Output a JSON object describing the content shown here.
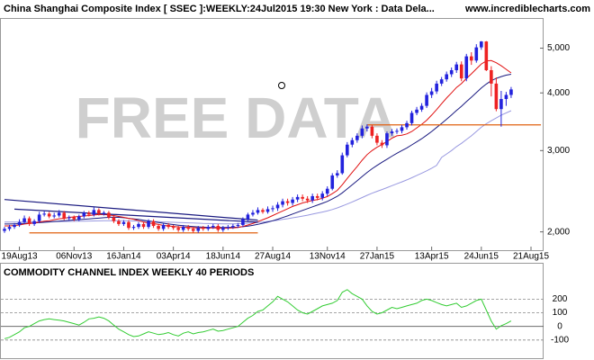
{
  "chart_data": [
    {
      "type": "candlestick",
      "title": "China Shanghai Composite Index [ SSEC ]:WEEKLY:24Jul2015 19:30 New York : Data Dela...",
      "source": "www.incrediblecharts.com",
      "watermark": "FREE DATA",
      "categories": [
        null,
        null,
        null,
        "19Aug13",
        null,
        null,
        null,
        null,
        null,
        null,
        null,
        null,
        null,
        null,
        "06Nov13",
        null,
        null,
        null,
        null,
        null,
        null,
        null,
        null,
        null,
        "16Jan14",
        null,
        null,
        null,
        null,
        null,
        null,
        null,
        null,
        null,
        "03Apr14",
        null,
        null,
        null,
        null,
        null,
        null,
        null,
        null,
        null,
        "18Jun14",
        null,
        null,
        null,
        null,
        null,
        null,
        null,
        null,
        null,
        "27Aug14",
        null,
        null,
        null,
        null,
        null,
        null,
        null,
        null,
        null,
        null,
        "13Nov14",
        null,
        null,
        null,
        null,
        null,
        null,
        null,
        null,
        null,
        "27Jan15",
        null,
        null,
        null,
        null,
        null,
        null,
        null,
        null,
        null,
        null,
        "13Apr15",
        null,
        null,
        null,
        null,
        null,
        null,
        null,
        null,
        null,
        "24Jun15",
        null,
        null,
        null,
        null,
        null,
        null,
        null,
        null,
        null,
        "21Aug15"
      ],
      "open": [
        2010,
        2030,
        2050,
        2070,
        2100,
        2140,
        2080,
        2110,
        2180,
        2190,
        2160,
        2170,
        2200,
        2140,
        2150,
        2130,
        2160,
        2200,
        2180,
        2230,
        2190,
        2200,
        2150,
        2110,
        2080,
        2100,
        2040,
        2050,
        2080,
        2050,
        2110,
        2060,
        2030,
        2070,
        2050,
        2040,
        2020,
        2050,
        2030,
        2010,
        2040,
        2030,
        2050,
        2060,
        2020,
        2040,
        2050,
        2060,
        2070,
        2130,
        2180,
        2200,
        2230,
        2210,
        2240,
        2250,
        2290,
        2330,
        2310,
        2350,
        2380,
        2360,
        2340,
        2390,
        2370,
        2420,
        2480,
        2650,
        2680,
        2930,
        3090,
        3160,
        3230,
        3350,
        3380,
        3230,
        3120,
        3080,
        3270,
        3300,
        3310,
        3370,
        3440,
        3620,
        3680,
        3750,
        3960,
        4030,
        4190,
        4280,
        4390,
        4480,
        4610,
        4300,
        4800,
        4700,
        5020,
        5170,
        4480,
        4190,
        3690,
        3880,
        3960,
        null,
        null,
        null,
        null
      ],
      "high": [
        2050,
        2070,
        2090,
        2130,
        2170,
        2160,
        2130,
        2210,
        2220,
        2210,
        2200,
        2230,
        2220,
        2170,
        2170,
        2180,
        2220,
        2220,
        2260,
        2250,
        2220,
        2220,
        2170,
        2130,
        2120,
        2120,
        2070,
        2100,
        2100,
        2130,
        2130,
        2080,
        2090,
        2090,
        2070,
        2060,
        2070,
        2070,
        2050,
        2060,
        2060,
        2070,
        2080,
        2080,
        2060,
        2070,
        2080,
        2090,
        2150,
        2200,
        2230,
        2260,
        2250,
        2270,
        2280,
        2320,
        2360,
        2360,
        2380,
        2410,
        2410,
        2390,
        2420,
        2420,
        2450,
        2510,
        2680,
        2720,
        2970,
        3130,
        3200,
        3270,
        3400,
        3420,
        3410,
        3270,
        3160,
        3300,
        3340,
        3350,
        3410,
        3480,
        3660,
        3730,
        3800,
        4010,
        4100,
        4250,
        4330,
        4450,
        4540,
        4670,
        4680,
        4860,
        4900,
        5100,
        5180,
        5180,
        4570,
        4320,
        4040,
        4020,
        4120,
        null,
        null,
        null,
        null
      ],
      "low": [
        1990,
        2010,
        2030,
        2050,
        2080,
        2060,
        2060,
        2090,
        2160,
        2140,
        2140,
        2150,
        2120,
        2120,
        2110,
        2110,
        2140,
        2160,
        2160,
        2170,
        2170,
        2130,
        2090,
        2060,
        2060,
        2020,
        2020,
        2030,
        2030,
        2030,
        2040,
        2010,
        2010,
        2030,
        2020,
        2000,
        2000,
        2010,
        1990,
        1990,
        2010,
        2010,
        2030,
        2000,
        2000,
        2020,
        2030,
        2040,
        2050,
        2110,
        2160,
        2180,
        2190,
        2190,
        2210,
        2220,
        2260,
        2280,
        2280,
        2320,
        2330,
        2310,
        2310,
        2340,
        2340,
        2390,
        2460,
        2620,
        2660,
        2900,
        3050,
        3120,
        3190,
        3300,
        3190,
        3080,
        3040,
        3040,
        3230,
        3260,
        3270,
        3330,
        3400,
        3580,
        3640,
        3710,
        3900,
        3980,
        4140,
        4230,
        4330,
        4420,
        4240,
        4240,
        4600,
        4650,
        4960,
        4460,
        3930,
        3650,
        3380,
        3750,
        3900,
        null,
        null,
        null,
        null
      ],
      "close": [
        2030,
        2050,
        2070,
        2100,
        2140,
        2080,
        2110,
        2180,
        2190,
        2160,
        2170,
        2200,
        2140,
        2150,
        2130,
        2160,
        2200,
        2180,
        2230,
        2190,
        2200,
        2150,
        2110,
        2080,
        2100,
        2040,
        2050,
        2080,
        2050,
        2110,
        2060,
        2030,
        2070,
        2050,
        2040,
        2020,
        2050,
        2030,
        2010,
        2040,
        2030,
        2050,
        2060,
        2020,
        2040,
        2050,
        2060,
        2070,
        2130,
        2180,
        2200,
        2230,
        2210,
        2240,
        2250,
        2290,
        2330,
        2310,
        2350,
        2380,
        2360,
        2340,
        2390,
        2370,
        2420,
        2480,
        2650,
        2680,
        2930,
        3090,
        3160,
        3230,
        3350,
        3380,
        3230,
        3120,
        3080,
        3270,
        3300,
        3310,
        3370,
        3440,
        3620,
        3680,
        3750,
        3960,
        4030,
        4190,
        4280,
        4390,
        4480,
        4610,
        4300,
        4800,
        4700,
        5020,
        5170,
        4480,
        4190,
        3690,
        3880,
        3960,
        4070,
        null,
        null,
        null,
        null
      ],
      "up_color": "#2222dd",
      "down_color": "#ee2222",
      "lines": [
        {
          "color": "#9999e0",
          "values": [
            2100,
            2100,
            2100,
            2100,
            2101,
            2101,
            2102,
            2102,
            2103,
            2103,
            2104,
            2105,
            2106,
            2107,
            2108,
            2109,
            2110,
            2111,
            2112,
            2113,
            2114,
            2115,
            2115,
            2115,
            2114,
            2113,
            2112,
            2111,
            2110,
            2108,
            2106,
            2104,
            2102,
            2100,
            2098,
            2096,
            2094,
            2092,
            2090,
            2088,
            2086,
            2085,
            2084,
            2083,
            2082,
            2082,
            2082,
            2083,
            2085,
            2088,
            2092,
            2096,
            2101,
            2107,
            2113,
            2120,
            2128,
            2136,
            2145,
            2154,
            2164,
            2174,
            2185,
            2196,
            2208,
            2220,
            2236,
            2254,
            2275,
            2298,
            2322,
            2347,
            2373,
            2400,
            2425,
            2448,
            2470,
            2494,
            2518,
            2542,
            2566,
            2592,
            2620,
            2650,
            2680,
            2712,
            2748,
            2786,
            2900,
            2950,
            3000,
            3060,
            3110,
            3170,
            3230,
            3300,
            3370,
            3430,
            3480,
            3530,
            3580,
            3620,
            3660,
            null,
            null,
            null,
            null
          ]
        },
        {
          "color": "#1a1a80",
          "values": [
            2080,
            2080,
            2082,
            2084,
            2086,
            2088,
            2090,
            2094,
            2098,
            2102,
            2106,
            2110,
            2114,
            2118,
            2122,
            2126,
            2130,
            2134,
            2138,
            2142,
            2146,
            2150,
            2152,
            2150,
            2146,
            2140,
            2134,
            2128,
            2120,
            2112,
            2104,
            2096,
            2088,
            2080,
            2074,
            2068,
            2062,
            2058,
            2054,
            2050,
            2048,
            2046,
            2045,
            2044,
            2044,
            2045,
            2046,
            2048,
            2052,
            2058,
            2066,
            2076,
            2088,
            2100,
            2114,
            2130,
            2148,
            2166,
            2186,
            2206,
            2226,
            2246,
            2266,
            2286,
            2306,
            2328,
            2356,
            2388,
            2430,
            2478,
            2528,
            2580,
            2636,
            2690,
            2740,
            2786,
            2830,
            2874,
            2918,
            2960,
            3000,
            3040,
            3086,
            3134,
            3184,
            3240,
            3300,
            3366,
            3436,
            3508,
            3584,
            3664,
            3742,
            3830,
            3916,
            4006,
            4100,
            4180,
            4250,
            4300,
            4340,
            4370,
            4390,
            null,
            null,
            null,
            null
          ]
        },
        {
          "color": "#e01010",
          "values": [
            2060,
            2060,
            2065,
            2070,
            2080,
            2085,
            2090,
            2100,
            2110,
            2115,
            2125,
            2135,
            2140,
            2150,
            2155,
            2160,
            2165,
            2170,
            2175,
            2180,
            2180,
            2175,
            2170,
            2160,
            2150,
            2140,
            2130,
            2115,
            2100,
            2090,
            2085,
            2075,
            2065,
            2060,
            2055,
            2050,
            2048,
            2045,
            2042,
            2040,
            2040,
            2040,
            2040,
            2038,
            2036,
            2038,
            2040,
            2045,
            2055,
            2070,
            2085,
            2105,
            2125,
            2145,
            2170,
            2195,
            2220,
            2245,
            2270,
            2290,
            2310,
            2325,
            2340,
            2350,
            2365,
            2385,
            2420,
            2460,
            2530,
            2610,
            2690,
            2770,
            2860,
            2940,
            3000,
            3050,
            3090,
            3140,
            3190,
            3230,
            3240,
            3260,
            3300,
            3360,
            3420,
            3490,
            3580,
            3680,
            3790,
            3900,
            4000,
            4110,
            4190,
            4300,
            4400,
            4510,
            4620,
            4690,
            4700,
            4650,
            4580,
            4500,
            4420,
            null,
            null,
            null,
            null
          ]
        }
      ],
      "segments": [
        {
          "color": "#1a1a80",
          "from": [
            0,
            2350
          ],
          "to": [
            51,
            2120
          ]
        },
        {
          "color": "#1a1a80",
          "from": [
            2,
            2240
          ],
          "to": [
            51,
            2100
          ]
        },
        {
          "color": "#e06010",
          "from": [
            5,
            1990
          ],
          "to": [
            51,
            1990
          ]
        },
        {
          "color": "#e06010",
          "from": [
            73,
            3410
          ],
          "to": [
            108,
            3410
          ]
        }
      ],
      "log_scale": true,
      "ylim": [
        1850,
        5760
      ],
      "yticks": [
        {
          "value": 2000,
          "label": "2,000"
        },
        {
          "value": 3000,
          "label": "3,000"
        },
        {
          "value": 4000,
          "label": "4,000"
        },
        {
          "value": 5000,
          "label": "5,000"
        }
      ]
    },
    {
      "type": "line",
      "title": "COMMODITY CHANNEL INDEX WEEKLY 40 PERIODS",
      "series": [
        {
          "color": "#33cc33",
          "values": [
            -90,
            -80,
            -60,
            -40,
            -10,
            0,
            20,
            40,
            50,
            55,
            50,
            45,
            40,
            30,
            20,
            10,
            30,
            55,
            60,
            70,
            60,
            40,
            10,
            -20,
            -40,
            -60,
            -75,
            -70,
            -55,
            -40,
            -50,
            -60,
            -55,
            -45,
            -60,
            -70,
            -50,
            -40,
            -55,
            -45,
            -40,
            -30,
            -20,
            -35,
            -30,
            -20,
            -10,
            0,
            30,
            60,
            80,
            110,
            120,
            150,
            180,
            220,
            200,
            180,
            150,
            120,
            100,
            90,
            110,
            130,
            150,
            160,
            170,
            190,
            250,
            270,
            240,
            220,
            200,
            150,
            110,
            90,
            100,
            120,
            140,
            130,
            140,
            150,
            160,
            170,
            190,
            200,
            190,
            175,
            160,
            150,
            160,
            170,
            140,
            150,
            170,
            190,
            200,
            120,
            40,
            -20,
            5,
            20,
            40,
            null,
            null,
            null,
            null
          ]
        }
      ],
      "ylim": [
        -220,
        440
      ],
      "yticks": [
        200,
        100,
        0,
        -100
      ],
      "grid": true
    }
  ]
}
